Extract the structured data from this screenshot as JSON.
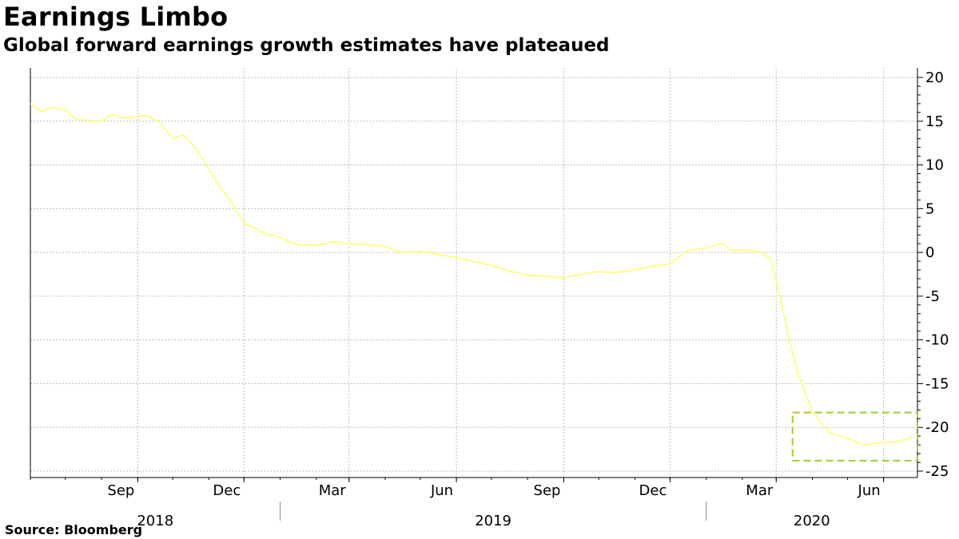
{
  "header": {
    "title": "Earnings Limbo",
    "subtitle": "Global forward earnings growth estimates have plateaued"
  },
  "footer": {
    "source": "Source: Bloomberg"
  },
  "colors": {
    "line": "#ffff6e",
    "highlight_box": "#9ccf2f",
    "grid": "#bdbdbd",
    "axis": "#000000"
  },
  "chart_data": {
    "type": "line",
    "title": "Earnings Limbo",
    "subtitle": "Global forward earnings growth estimates have plateaued",
    "xlabel": "",
    "ylabel": "",
    "x_range": [
      "2018-06-01",
      "2020-06-30"
    ],
    "ylim": [
      -25,
      20
    ],
    "y_ticks": [
      20,
      15,
      10,
      5,
      0,
      -5,
      -10,
      -15,
      -20,
      -25
    ],
    "y_axis_position": "right",
    "grid": true,
    "x_ticks": [
      {
        "label": "Sep",
        "date": "2018-09-01"
      },
      {
        "label": "Dec",
        "date": "2018-12-01"
      },
      {
        "label": "Mar",
        "date": "2019-03-01"
      },
      {
        "label": "Jun",
        "date": "2019-06-01"
      },
      {
        "label": "Sep",
        "date": "2019-09-01"
      },
      {
        "label": "Dec",
        "date": "2019-12-01"
      },
      {
        "label": "Mar",
        "date": "2020-03-01"
      },
      {
        "label": "Jun",
        "date": "2020-06-01"
      }
    ],
    "year_labels": [
      {
        "label": "2018",
        "start": "2018-06-01",
        "end": "2019-01-01"
      },
      {
        "label": "2019",
        "start": "2019-01-01",
        "end": "2020-01-01"
      },
      {
        "label": "2020",
        "start": "2020-01-01",
        "end": "2020-06-30"
      }
    ],
    "series": [
      {
        "name": "Global forward earnings growth estimate",
        "x": [
          "2018-06-01",
          "2018-06-10",
          "2018-06-20",
          "2018-07-01",
          "2018-07-10",
          "2018-07-20",
          "2018-08-01",
          "2018-08-10",
          "2018-08-20",
          "2018-09-01",
          "2018-09-10",
          "2018-09-20",
          "2018-10-01",
          "2018-10-10",
          "2018-10-20",
          "2018-11-01",
          "2018-11-10",
          "2018-11-20",
          "2018-12-01",
          "2018-12-10",
          "2018-12-20",
          "2019-01-01",
          "2019-01-15",
          "2019-02-01",
          "2019-02-15",
          "2019-03-01",
          "2019-03-15",
          "2019-04-01",
          "2019-04-15",
          "2019-05-01",
          "2019-05-15",
          "2019-06-01",
          "2019-06-15",
          "2019-07-01",
          "2019-07-15",
          "2019-08-01",
          "2019-08-15",
          "2019-09-01",
          "2019-09-15",
          "2019-10-01",
          "2019-10-15",
          "2019-11-01",
          "2019-11-15",
          "2019-12-01",
          "2019-12-15",
          "2020-01-01",
          "2020-01-15",
          "2020-01-22",
          "2020-02-01",
          "2020-02-15",
          "2020-02-25",
          "2020-03-05",
          "2020-03-12",
          "2020-03-20",
          "2020-04-01",
          "2020-04-15",
          "2020-05-01",
          "2020-05-15",
          "2020-06-01",
          "2020-06-15",
          "2020-06-25"
        ],
        "values": [
          17.0,
          16.1,
          16.6,
          16.3,
          15.2,
          15.1,
          15.0,
          15.8,
          15.3,
          15.6,
          15.6,
          14.8,
          13.0,
          13.4,
          12.0,
          9.5,
          7.5,
          5.8,
          3.3,
          2.8,
          2.1,
          1.7,
          0.9,
          0.8,
          1.2,
          1.0,
          0.9,
          0.7,
          0.0,
          0.1,
          -0.2,
          -0.6,
          -1.0,
          -1.5,
          -2.1,
          -2.6,
          -2.7,
          -2.9,
          -2.5,
          -2.2,
          -2.3,
          -2.0,
          -1.6,
          -1.3,
          0.2,
          0.5,
          1.1,
          0.2,
          0.3,
          0.1,
          -0.7,
          -5.5,
          -10.0,
          -14.0,
          -18.3,
          -20.5,
          -21.3,
          -22.0,
          -21.7,
          -21.6,
          -21.1
        ]
      }
    ],
    "annotations": [
      {
        "type": "dashed-box",
        "x_start": "2020-03-15",
        "x_end": "2020-06-30",
        "y_start": -18.3,
        "y_end": -23.8,
        "label": ""
      }
    ]
  }
}
